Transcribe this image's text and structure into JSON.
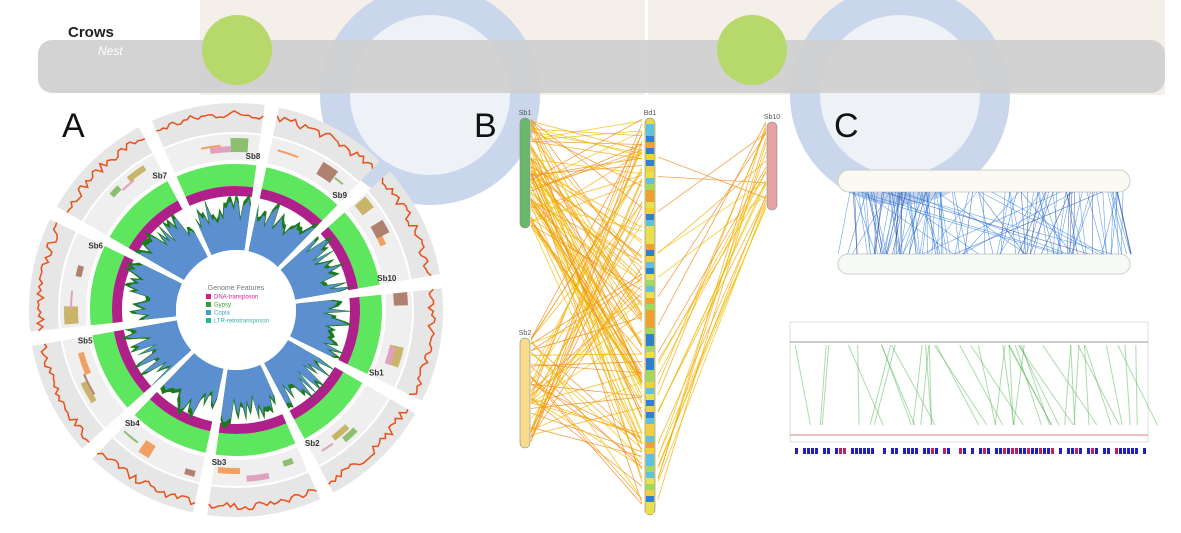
{
  "header": {
    "title": "Crows",
    "subtitle": "Nest"
  },
  "panels": [
    {
      "label": "A",
      "chromosomes": [
        "Sb1",
        "Sb2",
        "Sb3",
        "Sb4",
        "Sb5",
        "Sb6",
        "Sb7",
        "Sb8",
        "Sb9",
        "Sb10"
      ],
      "legend_title": "Genome Features",
      "legend_items": [
        "DNA-transposon",
        "Gypsy",
        "Copia",
        "LTR-retrotransposon"
      ]
    },
    {
      "label": "B",
      "chromosomes": [
        "Sb1",
        "Sb2",
        "Bd1",
        "Sb10"
      ]
    },
    {
      "label": "C"
    }
  ]
}
